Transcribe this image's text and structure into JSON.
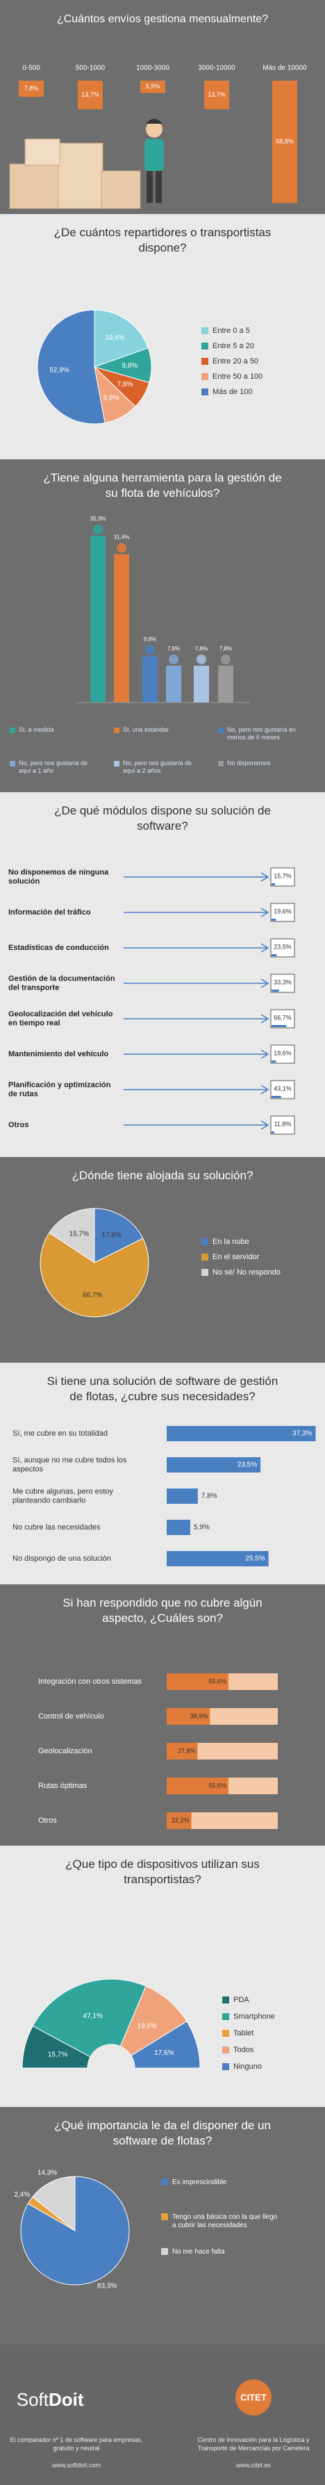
{
  "chart_data": [
    {
      "type": "column",
      "title": "¿Cuántos envíos gestiona mensualmente?",
      "categories": [
        "0-500",
        "500-1000",
        "1000-3000",
        "3000-10000",
        "Más de 10000"
      ],
      "values": [
        7.8,
        13.7,
        5.9,
        13.7,
        58.8
      ],
      "value_labels": [
        "7,8%",
        "13,7%",
        "5,9%",
        "13,7%",
        "58,8%"
      ],
      "color": "#e07b39"
    },
    {
      "type": "pie",
      "title": "¿De cuántos repartidores o transportistas dispone?",
      "categories": [
        "Entre 0 a 5",
        "Entre 5 a 20",
        "Entre 20 a 50",
        "Entre 50 a 100",
        "Más de 100"
      ],
      "values": [
        19.6,
        9.8,
        7.8,
        9.8,
        52.9
      ],
      "value_labels": [
        "19,6%",
        "9,8%",
        "7,8%",
        "9,8%",
        "52,9%"
      ],
      "colors": [
        "#86d3dd",
        "#2fa59b",
        "#d9622b",
        "#f0a27a",
        "#4a7fc1"
      ]
    },
    {
      "type": "bar",
      "title": "¿Tiene alguna herramienta para la gestión de su flota de vehículos?",
      "categories": [
        "Sí, a medida",
        "Sí, una estándar",
        "No, pero nos gustaría en menos de 6 meses",
        "No, pero nos gustaría de aquí a 1 año",
        "No, pero nos gustaría de aquí a 2 años",
        "No disponemos"
      ],
      "values": [
        35.3,
        31.4,
        9.8,
        7.8,
        7.8,
        7.8
      ],
      "value_labels": [
        "35,3%",
        "31,4%",
        "9,8%",
        "7,8%",
        "7,8%",
        "7,8%"
      ],
      "colors": [
        "#2fa59b",
        "#e07b39",
        "#4a7fc1",
        "#7fa7d6",
        "#a8c4e4",
        "#9a9a9a"
      ]
    },
    {
      "type": "module",
      "title": "¿De qué módulos dispone su solución de software?",
      "categories": [
        "No disponemos de ninguna solución",
        "Información del tráfico",
        "Estadísticas de conducción",
        "Gestión de la documentación del transporte",
        "Geolocalización del vehículo en tiempo real",
        "Mantenimiento del vehículo",
        "Planificación y optimización de rutas",
        "Otros"
      ],
      "values": [
        15.7,
        19.6,
        23.5,
        33.3,
        66.7,
        19.6,
        43.1,
        11.8
      ],
      "value_labels": [
        "15,7%",
        "19,6%",
        "23,5%",
        "33,3%",
        "66,7%",
        "19,6%",
        "43,1%",
        "11,8%"
      ],
      "color": "#4a7fc1"
    },
    {
      "type": "pie",
      "title": "¿Dónde tiene alojada su solución?",
      "categories": [
        "En la nube",
        "En el servidor",
        "No sé/ No respondo"
      ],
      "values": [
        17.6,
        66.7,
        15.7
      ],
      "value_labels": [
        "17,6%",
        "66,7%",
        "15,7%"
      ],
      "colors": [
        "#4a7fc1",
        "#d99a35",
        "#d5d5d5"
      ]
    },
    {
      "type": "hbar",
      "title": "Si tiene una solución de software de gestión de flotas, ¿cubre sus necesidades?",
      "categories": [
        "Sí, me cubre en su totalidad",
        "Sí, aunque no me cubre todos los aspectos",
        "Me cubre algunas, pero estoy planteando cambiarlo",
        "No cubre las necesidades",
        "No dispongo de una solución"
      ],
      "values": [
        37.3,
        23.5,
        7.8,
        5.9,
        25.5
      ],
      "value_labels": [
        "37,3%",
        "23,5%",
        "7,8%",
        "5,9%",
        "25,5%"
      ],
      "color": "#4a7fc1"
    },
    {
      "type": "progress",
      "title": "Si han respondido que no cubre algún aspecto, ¿Cuáles son?",
      "categories": [
        "Integración con otros sistemas",
        "Control de vehículo",
        "Geolocalización",
        "Rutas óptimas",
        "Otros"
      ],
      "values": [
        55.6,
        38.9,
        27.8,
        55.6,
        22.2
      ],
      "value_labels": [
        "55,6%",
        "38,9%",
        "27,8%",
        "55,6%",
        "22,2%"
      ],
      "color": "#e07b39",
      "track_color": "#f6c9a8"
    },
    {
      "type": "donut",
      "title": "¿Que tipo de dispositivos utilizan sus transportistas?",
      "categories": [
        "PDA",
        "Smartphone",
        "Tablet",
        "Todos",
        "Ninguno"
      ],
      "values": [
        15.7,
        47.1,
        0,
        19.6,
        17.6
      ],
      "value_labels": [
        "15,7%",
        "47,1%",
        null,
        "19,6%",
        "17,6%"
      ],
      "colors": [
        "#1f6f73",
        "#2fa59b",
        "#e8a13a",
        "#f0a27a",
        "#4a7fc1"
      ]
    },
    {
      "type": "pie",
      "title": "¿Qué importancia le da el disponer de un software de flotas?",
      "categories": [
        "Es imprescindible",
        "Tengo una básica con la que llego a cubrir las necesidades",
        "No me hace falta"
      ],
      "values": [
        83.3,
        2.4,
        14.3
      ],
      "value_labels": [
        "83,3%",
        "2,4%",
        "14,3%"
      ],
      "colors": [
        "#4a7fc1",
        "#e8a13a",
        "#d5d5d5"
      ]
    }
  ],
  "footer": {
    "left_logo_1": "Soft",
    "left_logo_2": "Doit",
    "left_text": "El comparador nº 1 de software para empresas, gratuito y neutral",
    "left_url": "www.softdoit.com",
    "right_logo": "CITET",
    "right_text": "Centro de Innovación para la Logística y Transporte de Mercancías por Carretera",
    "right_url": "www.citet.es"
  }
}
